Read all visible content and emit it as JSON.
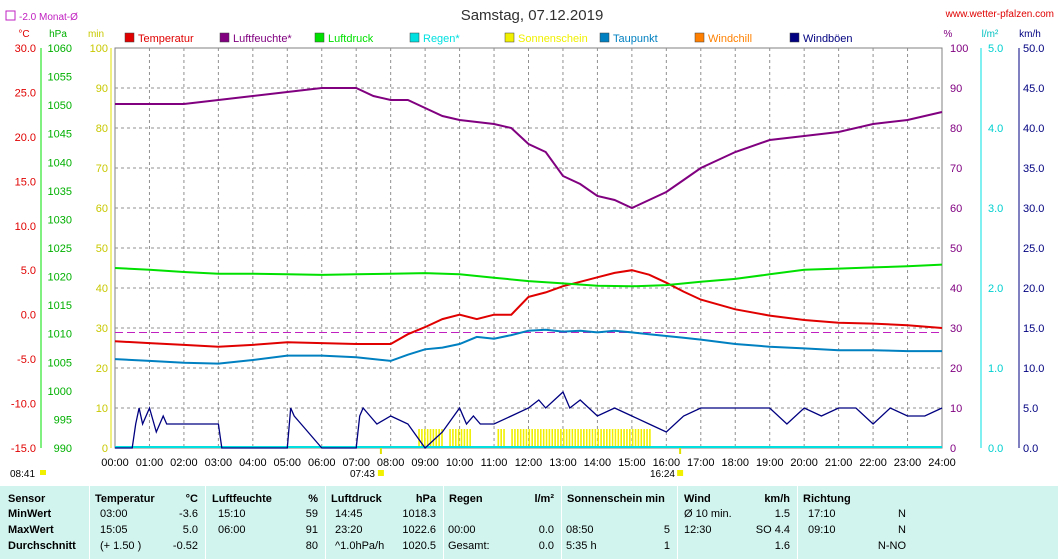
{
  "header": {
    "title": "Samstag, 07.12.2019",
    "site": "www.wetter-pfalzen.com",
    "monthly_avg": "-2.0 Monat-Ø",
    "sun_start_label": "08:41",
    "sunrise_marker": "07:43",
    "sunset_marker": "16:24"
  },
  "colors": {
    "temperature": "#e00000",
    "humidity": "#800080",
    "pressure": "#00e000",
    "rain": "#00e0e0",
    "sunshine": "#f0f000",
    "dewpoint": "#0080c0",
    "windchill": "#ff8000",
    "gusts": "#000080",
    "table_bg": "#d2f4ef"
  },
  "chart_data": {
    "type": "line",
    "title": "Samstag, 07.12.2019",
    "x": {
      "label": "",
      "ticks": [
        "00:00",
        "01:00",
        "02:00",
        "03:00",
        "04:00",
        "05:00",
        "06:00",
        "07:00",
        "08:00",
        "09:00",
        "10:00",
        "11:00",
        "12:00",
        "13:00",
        "14:00",
        "15:00",
        "16:00",
        "17:00",
        "18:00",
        "19:00",
        "20:00",
        "21:00",
        "22:00",
        "23:00",
        "24:00"
      ],
      "range_hours": [
        0,
        24
      ]
    },
    "axes": {
      "temperature": {
        "unit": "°C",
        "range": [
          -15,
          30
        ],
        "ticks": [
          "30.0",
          "25.0",
          "20.0",
          "15.0",
          "10.0",
          "5.0",
          "0.0",
          "-5.0",
          "-10.0",
          "-15.0"
        ]
      },
      "pressure": {
        "unit": "hPa",
        "range": [
          990,
          1060
        ],
        "ticks": [
          "1060",
          "1055",
          "1050",
          "1045",
          "1040",
          "1035",
          "1030",
          "1025",
          "1020",
          "1015",
          "1010",
          "1005",
          "1000",
          "995",
          "990"
        ]
      },
      "sunshine": {
        "unit": "min",
        "range": [
          0,
          100
        ],
        "ticks": [
          "100",
          "90",
          "80",
          "70",
          "60",
          "50",
          "40",
          "30",
          "20",
          "10",
          "0"
        ]
      },
      "humidity": {
        "unit": "%",
        "range": [
          0,
          100
        ],
        "ticks": [
          "100",
          "90",
          "80",
          "70",
          "60",
          "50",
          "40",
          "30",
          "20",
          "10",
          "0"
        ]
      },
      "rain": {
        "unit": "l/m²",
        "range": [
          0,
          5
        ],
        "ticks": [
          "5.0",
          "4.0",
          "3.0",
          "2.0",
          "1.0",
          "0.0"
        ]
      },
      "wind": {
        "unit": "km/h",
        "range": [
          0,
          50
        ],
        "ticks": [
          "50.0",
          "45.0",
          "40.0",
          "35.0",
          "30.0",
          "25.0",
          "20.0",
          "15.0",
          "10.0",
          "5.0",
          "0.0"
        ]
      }
    },
    "legend": [
      {
        "key": "temperature",
        "label": "Temperatur"
      },
      {
        "key": "humidity",
        "label": "Luftfeuchte*"
      },
      {
        "key": "pressure",
        "label": "Luftdruck"
      },
      {
        "key": "rain",
        "label": "Regen*"
      },
      {
        "key": "sunshine",
        "label": "Sonnenschein"
      },
      {
        "key": "dewpoint",
        "label": "Taupunkt"
      },
      {
        "key": "windchill",
        "label": "Windchill"
      },
      {
        "key": "gusts",
        "label": "Windböen"
      }
    ],
    "monthly_avg_temp": -2.0,
    "series": [
      {
        "name": "Temperatur",
        "axis": "temperature",
        "x": [
          0,
          1,
          2,
          3,
          4,
          5,
          6,
          7,
          8,
          8.5,
          9,
          9.5,
          10,
          10.5,
          11,
          11.5,
          12,
          12.5,
          13,
          13.5,
          14,
          14.5,
          15,
          15.5,
          16,
          16.5,
          17,
          18,
          19,
          20,
          21,
          22,
          23,
          24
        ],
        "y": [
          -3.0,
          -3.2,
          -3.4,
          -3.6,
          -3.4,
          -3.1,
          -3.2,
          -3.3,
          -3.3,
          -2.2,
          -1.4,
          -0.5,
          0.0,
          -0.5,
          0.0,
          0.0,
          2.0,
          2.5,
          3.2,
          3.7,
          4.2,
          4.7,
          5.0,
          4.5,
          3.6,
          2.6,
          1.7,
          0.6,
          -0.1,
          -0.6,
          -0.9,
          -1.0,
          -1.2,
          -1.5
        ]
      },
      {
        "name": "Luftfeuchte*",
        "axis": "humidity",
        "x": [
          0,
          1,
          2,
          3,
          4,
          5,
          6,
          7,
          7.5,
          8,
          8.5,
          9,
          9.5,
          10,
          11,
          11.5,
          12,
          12.5,
          13,
          13.5,
          14,
          14.5,
          15,
          15.5,
          16,
          16.5,
          17,
          18,
          19,
          20,
          21,
          22,
          23,
          24
        ],
        "y": [
          86,
          86,
          86,
          87,
          88,
          89,
          90,
          90,
          88,
          87,
          87,
          85,
          83,
          82,
          81,
          80,
          76,
          74,
          68,
          66,
          63,
          62,
          60,
          62,
          64,
          67,
          70,
          74,
          77,
          78,
          79,
          81,
          82,
          84
        ]
      },
      {
        "name": "Luftdruck",
        "axis": "pressure",
        "x": [
          0,
          1,
          2,
          3,
          4,
          5,
          6,
          7,
          8,
          9,
          10,
          11,
          12,
          13,
          14,
          15,
          16,
          17,
          18,
          19,
          20,
          21,
          22,
          23,
          24
        ],
        "y": [
          1021.5,
          1021.2,
          1020.8,
          1020.5,
          1020.5,
          1020.4,
          1020.3,
          1020.4,
          1020.5,
          1020.6,
          1020.4,
          1019.8,
          1019.2,
          1018.8,
          1018.4,
          1018.3,
          1018.5,
          1019.1,
          1019.6,
          1020.4,
          1021.2,
          1021.4,
          1021.6,
          1021.8,
          1022.1
        ]
      },
      {
        "name": "Taupunkt",
        "axis": "temperature",
        "x": [
          0,
          1,
          2,
          3,
          4,
          5,
          6,
          7,
          8,
          8.5,
          9,
          9.5,
          10,
          10.5,
          11,
          11.5,
          12,
          12.5,
          13,
          13.5,
          14,
          14.5,
          15,
          15.5,
          16,
          16.5,
          17,
          18,
          19,
          20,
          21,
          22,
          23,
          24
        ],
        "y": [
          -5.0,
          -5.2,
          -5.4,
          -5.5,
          -5.1,
          -4.6,
          -4.6,
          -4.8,
          -5.2,
          -4.5,
          -3.9,
          -3.7,
          -3.3,
          -2.5,
          -2.7,
          -2.3,
          -1.8,
          -1.7,
          -1.9,
          -1.8,
          -2.0,
          -1.8,
          -2.0,
          -2.2,
          -2.4,
          -2.6,
          -2.8,
          -3.3,
          -3.6,
          -3.8,
          -4.0,
          -4.0,
          -4.1,
          -4.1
        ]
      },
      {
        "name": "Windböen",
        "axis": "wind",
        "x": [
          0,
          0.5,
          0.6,
          0.7,
          0.8,
          1,
          1.2,
          1.4,
          1.5,
          1.7,
          2,
          2.5,
          3,
          3.1,
          3.2,
          3.3,
          5,
          5.1,
          5.2,
          5.4,
          6,
          6.5,
          7,
          7.1,
          7.2,
          7.4,
          7.6,
          8,
          8.5,
          9,
          9.5,
          10,
          10.2,
          10.4,
          10.6,
          11,
          11.5,
          12,
          12.3,
          12.5,
          13,
          13.2,
          13.5,
          14,
          14.5,
          15,
          15.5,
          16,
          16.5,
          17,
          17.5,
          18,
          18.5,
          19,
          19.5,
          20,
          20.5,
          21,
          21.5,
          22,
          22.5,
          23,
          23.5,
          24
        ],
        "y": [
          0,
          0,
          3,
          5,
          3,
          5,
          2,
          4,
          3,
          3,
          3,
          3,
          3,
          0,
          0,
          0,
          0,
          5,
          4,
          3,
          0,
          0,
          0,
          4,
          5,
          4,
          3,
          4,
          3,
          0,
          2,
          5,
          3,
          4,
          3,
          3,
          4,
          5,
          6,
          5,
          7,
          5,
          6,
          4,
          5,
          4,
          3,
          2,
          4,
          5,
          5,
          5,
          5,
          5,
          3,
          5,
          4,
          5,
          5,
          3,
          5,
          4,
          4,
          5
        ]
      }
    ],
    "sunshine_windows": [
      [
        8.8,
        9.5
      ],
      [
        9.7,
        10.3
      ],
      [
        11.1,
        11.3
      ],
      [
        11.5,
        15.55
      ]
    ]
  },
  "table": {
    "headers": {
      "sensor": "Sensor",
      "temp": "Temperatur",
      "temp_unit": "°C",
      "hum": "Luftfeuchte",
      "hum_unit": "%",
      "press": "Luftdruck",
      "press_unit": "hPa",
      "rain": "Regen",
      "rain_unit": "l/m²",
      "sun": "Sonnenschein min",
      "wind": "Wind",
      "wind_unit": "km/h",
      "dir": "Richtung"
    },
    "rows": [
      {
        "label": "MinWert",
        "t_time": "03:00",
        "t_val": "-3.6",
        "h_time": "15:10",
        "h_val": "59",
        "p_time": "14:45",
        "p_val": "1018.3",
        "r_time": "",
        "r_val": "",
        "s_time": "",
        "s_val": "",
        "w_time": "Ø 10 min.",
        "w_val": "1.5",
        "d_time": "17:10",
        "d_val": "N"
      },
      {
        "label": "MaxWert",
        "t_time": "15:05",
        "t_val": "5.0",
        "h_time": "06:00",
        "h_val": "91",
        "p_time": "23:20",
        "p_val": "1022.6",
        "r_time": "00:00",
        "r_val": "0.0",
        "s_time": "08:50",
        "s_val": "5",
        "w_time": "12:30",
        "w_val": "SO 4.4",
        "d_time": "09:10",
        "d_val": "N"
      },
      {
        "label": "Durchschnitt",
        "t_time": "(+ 1.50 )",
        "t_val": "-0.52",
        "h_time": "",
        "h_val": "80",
        "p_time": "^1.0hPa/h",
        "p_val": "1020.5",
        "r_time": "Gesamt:",
        "r_val": "0.0",
        "s_time": "5:35 h",
        "s_val": "1",
        "w_time": "",
        "w_val": "1.6",
        "d_time": "",
        "d_val": "N-NO"
      }
    ]
  }
}
